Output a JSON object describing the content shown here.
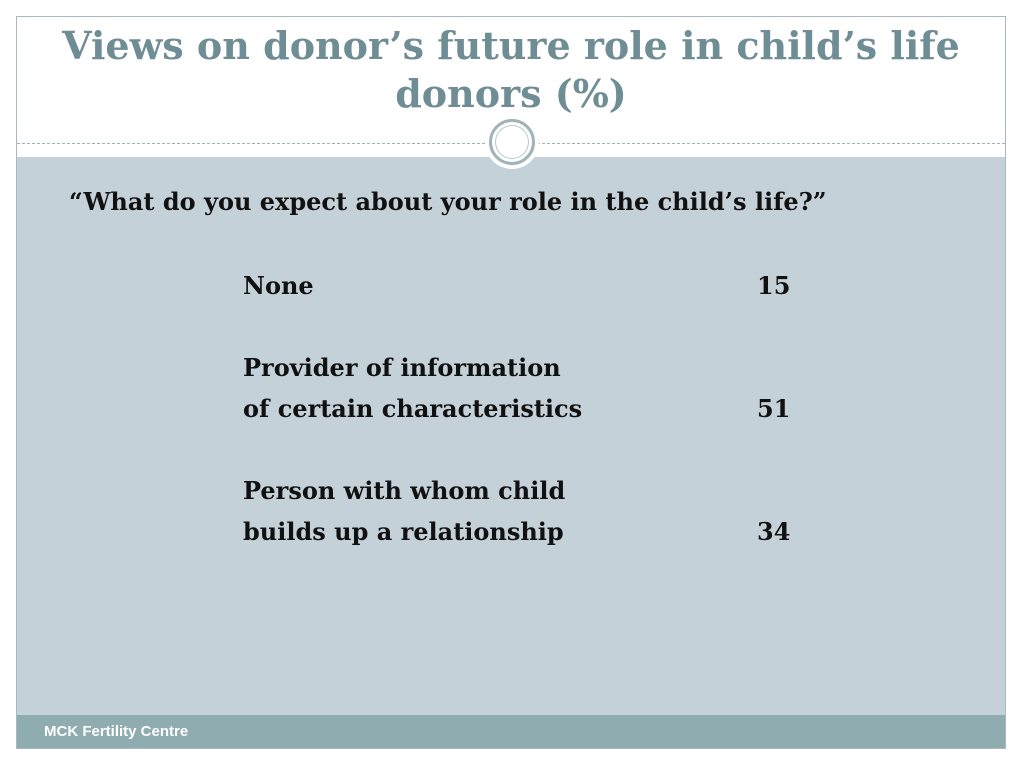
{
  "slide": {
    "title_line1": "Views on donor’s future role in child’s life",
    "title_line2": "donors (%)",
    "question": "“What do you expect about your role in the child’s life?”",
    "rows": [
      {
        "label_lines": [
          "None"
        ],
        "value": "15"
      },
      {
        "label_lines": [
          "Provider of information",
          "of certain characteristics"
        ],
        "value": "51"
      },
      {
        "label_lines": [
          "Person with whom child",
          "builds up a relationship"
        ],
        "value": "34"
      }
    ],
    "footer": "MCK Fertility Centre"
  },
  "colors": {
    "title": "#6f8d95",
    "content_background": "#c5d1d8",
    "footer_background": "#8fadb0",
    "ornament_ring": "#9fb3b9"
  }
}
